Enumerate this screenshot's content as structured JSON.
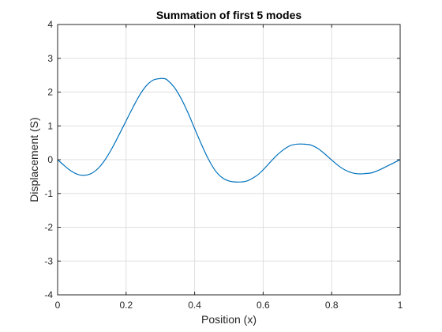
{
  "chart_data": {
    "type": "line",
    "title": "Summation of first 5 modes",
    "xlabel": "Position (x)",
    "ylabel": "Displacement (S)",
    "xlim": [
      0,
      1
    ],
    "ylim": [
      -4,
      4
    ],
    "xticks": [
      "0",
      "0.2",
      "0.4",
      "0.6",
      "0.8",
      "1"
    ],
    "yticks": [
      "-4",
      "-3",
      "-2",
      "-1",
      "0",
      "1",
      "2",
      "3",
      "4"
    ],
    "grid": true,
    "series": [
      {
        "color": "#0072bd",
        "x": [
          0,
          0.02,
          0.04,
          0.06,
          0.08,
          0.1,
          0.12,
          0.14,
          0.16,
          0.18,
          0.2,
          0.22,
          0.24,
          0.26,
          0.28,
          0.3,
          0.31,
          0.32,
          0.34,
          0.36,
          0.38,
          0.4,
          0.42,
          0.44,
          0.46,
          0.48,
          0.5,
          0.52,
          0.55,
          0.58,
          0.6,
          0.62,
          0.64,
          0.66,
          0.68,
          0.7,
          0.72,
          0.73,
          0.74,
          0.76,
          0.78,
          0.8,
          0.82,
          0.84,
          0.86,
          0.88,
          0.9,
          0.91,
          0.92,
          0.94,
          0.96,
          0.98,
          1.0
        ],
        "y": [
          0,
          -0.18,
          -0.34,
          -0.44,
          -0.46,
          -0.4,
          -0.24,
          0.02,
          0.36,
          0.75,
          1.15,
          1.55,
          1.92,
          2.2,
          2.36,
          2.4,
          2.4,
          2.36,
          2.15,
          1.82,
          1.4,
          0.92,
          0.45,
          0.02,
          -0.32,
          -0.53,
          -0.63,
          -0.66,
          -0.64,
          -0.48,
          -0.3,
          -0.08,
          0.13,
          0.3,
          0.42,
          0.46,
          0.46,
          0.45,
          0.43,
          0.33,
          0.17,
          -0.01,
          -0.18,
          -0.31,
          -0.39,
          -0.42,
          -0.41,
          -0.4,
          -0.38,
          -0.3,
          -0.2,
          -0.1,
          0
        ]
      }
    ]
  }
}
